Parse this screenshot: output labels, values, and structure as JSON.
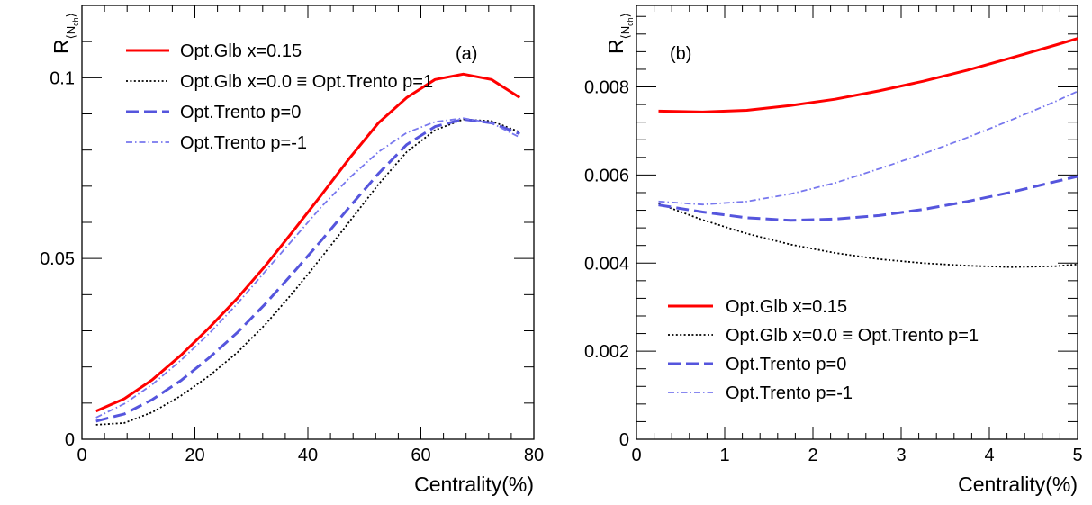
{
  "chart_data": [
    {
      "type": "line",
      "panel_label": "(a)",
      "xlabel": "Centrality(%)",
      "ylabel": {
        "main": "R",
        "sub": "⟨N",
        "subsub": "ch",
        "close": "⟩"
      },
      "xlim": [
        0,
        80
      ],
      "ylim": [
        0,
        0.12
      ],
      "xticks": [
        0,
        20,
        40,
        60,
        80
      ],
      "xtick_labels": [
        "0",
        "20",
        "40",
        "60",
        "80"
      ],
      "yticks": [
        0,
        0.05,
        0.1
      ],
      "ytick_labels": [
        "0",
        "0.05",
        "0.1"
      ],
      "grid": false,
      "legend_position": "top-left",
      "series": [
        {
          "name": "Opt.Glb x=0.15",
          "color": "#ff0000",
          "style": "solid",
          "x": [
            2.5,
            7.5,
            12.5,
            17.5,
            22.5,
            27.5,
            32.5,
            37.5,
            42.5,
            47.5,
            52.5,
            57.5,
            62.5,
            67.5,
            72.5,
            77.5
          ],
          "y": [
            0.0078,
            0.0112,
            0.0165,
            0.0232,
            0.0308,
            0.039,
            0.048,
            0.0578,
            0.0678,
            0.078,
            0.0875,
            0.0945,
            0.0995,
            0.101,
            0.0995,
            0.0945
          ]
        },
        {
          "name": "Opt.Glb x=0.0 ≡ Opt.Trento p=1",
          "color": "#000000",
          "style": "dotted",
          "x": [
            2.5,
            7.5,
            12.5,
            17.5,
            22.5,
            27.5,
            32.5,
            37.5,
            42.5,
            47.5,
            52.5,
            57.5,
            62.5,
            67.5,
            72.5,
            77.5
          ],
          "y": [
            0.004,
            0.0045,
            0.0075,
            0.012,
            0.0175,
            0.024,
            0.0318,
            0.0408,
            0.0505,
            0.0605,
            0.0705,
            0.0795,
            0.0855,
            0.0885,
            0.088,
            0.085
          ]
        },
        {
          "name": "Opt.Trento p=0",
          "color": "#5555dd",
          "style": "dashed",
          "x": [
            2.5,
            7.5,
            12.5,
            17.5,
            22.5,
            27.5,
            32.5,
            37.5,
            42.5,
            47.5,
            52.5,
            57.5,
            62.5,
            67.5,
            72.5,
            77.5
          ],
          "y": [
            0.005,
            0.007,
            0.011,
            0.0162,
            0.0225,
            0.0295,
            0.0375,
            0.0462,
            0.0552,
            0.0645,
            0.0735,
            0.0815,
            0.0865,
            0.0885,
            0.0875,
            0.0845
          ]
        },
        {
          "name": "Opt.Trento p=-1",
          "color": "#7777ee",
          "style": "dashdot",
          "x": [
            2.5,
            7.5,
            12.5,
            17.5,
            22.5,
            27.5,
            32.5,
            37.5,
            42.5,
            47.5,
            52.5,
            57.5,
            62.5,
            67.5,
            72.5,
            77.5
          ],
          "y": [
            0.006,
            0.0098,
            0.0152,
            0.0218,
            0.0292,
            0.0375,
            0.0465,
            0.0555,
            0.0645,
            0.0725,
            0.0795,
            0.0848,
            0.0878,
            0.0888,
            0.0875,
            0.0835
          ]
        }
      ]
    },
    {
      "type": "line",
      "panel_label": "(b)",
      "xlabel": "Centrality(%)",
      "ylabel": {
        "main": "R",
        "sub": "⟨N",
        "subsub": "ch",
        "close": "⟩"
      },
      "xlim": [
        0,
        5
      ],
      "ylim": [
        0,
        0.00985
      ],
      "xticks": [
        0,
        1,
        2,
        3,
        4,
        5
      ],
      "xtick_labels": [
        "0",
        "1",
        "2",
        "3",
        "4",
        "5"
      ],
      "yticks": [
        0,
        0.002,
        0.004,
        0.006,
        0.008
      ],
      "ytick_labels": [
        "0",
        "0.002",
        "0.004",
        "0.006",
        "0.008"
      ],
      "grid": false,
      "legend_position": "bottom-left",
      "series": [
        {
          "name": "Opt.Glb x=0.15",
          "color": "#ff0000",
          "style": "solid",
          "x": [
            0.25,
            0.75,
            1.25,
            1.75,
            2.25,
            2.75,
            3.25,
            3.75,
            4.25,
            4.75,
            5.0
          ],
          "y": [
            0.00745,
            0.00743,
            0.00747,
            0.00758,
            0.00772,
            0.00791,
            0.00813,
            0.00838,
            0.00866,
            0.00895,
            0.0091
          ]
        },
        {
          "name": "Opt.Glb x=0.0 ≡ Opt.Trento p=1",
          "color": "#000000",
          "style": "dotted",
          "x": [
            0.25,
            0.75,
            1.25,
            1.75,
            2.25,
            2.75,
            3.25,
            3.75,
            4.25,
            4.75,
            5.0
          ],
          "y": [
            0.00535,
            0.00498,
            0.00467,
            0.00442,
            0.00423,
            0.00409,
            0.004,
            0.00394,
            0.00391,
            0.00393,
            0.00397
          ]
        },
        {
          "name": "Opt.Trento p=0",
          "color": "#5555dd",
          "style": "dashed",
          "x": [
            0.25,
            0.75,
            1.25,
            1.75,
            2.25,
            2.75,
            3.25,
            3.75,
            4.25,
            4.75,
            5.0
          ],
          "y": [
            0.00532,
            0.00516,
            0.00503,
            0.00497,
            0.005,
            0.00508,
            0.00522,
            0.0054,
            0.00561,
            0.00585,
            0.00597
          ]
        },
        {
          "name": "Opt.Trento p=-1",
          "color": "#7777ee",
          "style": "dashdot",
          "x": [
            0.25,
            0.75,
            1.25,
            1.75,
            2.25,
            2.75,
            3.25,
            3.75,
            4.25,
            4.75,
            5.0
          ],
          "y": [
            0.0054,
            0.00533,
            0.0054,
            0.00557,
            0.00582,
            0.00614,
            0.00648,
            0.00685,
            0.00725,
            0.00767,
            0.0079
          ]
        }
      ]
    }
  ]
}
